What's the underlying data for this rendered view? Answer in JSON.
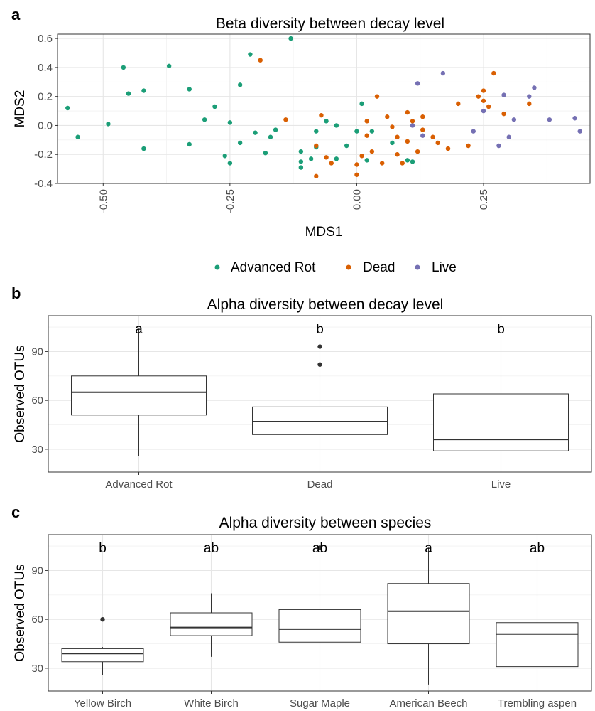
{
  "panel_labels": [
    "a",
    "b",
    "c"
  ],
  "legend": {
    "items": [
      {
        "label": "Advanced Rot",
        "color": "#1b9e77"
      },
      {
        "label": "Dead",
        "color": "#d95f02"
      },
      {
        "label": "Live",
        "color": "#7570b3"
      }
    ]
  },
  "chart_data": [
    {
      "type": "scatter",
      "title": "Beta diversity between decay level",
      "xlabel": "MDS1",
      "ylabel": "MDS2",
      "xlim": [
        -0.59,
        0.46
      ],
      "ylim": [
        -0.4,
        0.63
      ],
      "xticks": [
        -0.5,
        -0.25,
        0.0,
        0.25
      ],
      "xtick_labels": [
        "-0.50",
        "-0.25",
        "0.00",
        "0.25"
      ],
      "yticks": [
        -0.4,
        -0.2,
        0.0,
        0.2,
        0.4,
        0.6
      ],
      "ytick_labels": [
        "-0.4",
        "-0.2",
        "0.0",
        "0.2",
        "0.4",
        "0.6"
      ],
      "grid": true,
      "legend_position": "bottom",
      "series": [
        {
          "name": "Advanced Rot",
          "color": "#1b9e77",
          "points": [
            [
              -0.57,
              0.12
            ],
            [
              -0.55,
              -0.08
            ],
            [
              -0.49,
              0.01
            ],
            [
              -0.46,
              0.4
            ],
            [
              -0.45,
              0.22
            ],
            [
              -0.42,
              0.24
            ],
            [
              -0.42,
              -0.16
            ],
            [
              -0.37,
              0.41
            ],
            [
              -0.33,
              0.25
            ],
            [
              -0.33,
              -0.13
            ],
            [
              -0.3,
              0.04
            ],
            [
              -0.28,
              0.13
            ],
            [
              -0.26,
              -0.21
            ],
            [
              -0.25,
              0.02
            ],
            [
              -0.25,
              -0.26
            ],
            [
              -0.23,
              0.28
            ],
            [
              -0.23,
              -0.12
            ],
            [
              -0.21,
              0.49
            ],
            [
              -0.2,
              -0.05
            ],
            [
              -0.18,
              -0.19
            ],
            [
              -0.17,
              -0.08
            ],
            [
              -0.16,
              -0.03
            ],
            [
              -0.13,
              0.6
            ],
            [
              -0.11,
              -0.25
            ],
            [
              -0.11,
              -0.29
            ],
            [
              -0.11,
              -0.18
            ],
            [
              -0.09,
              -0.23
            ],
            [
              -0.08,
              -0.15
            ],
            [
              -0.08,
              -0.04
            ],
            [
              -0.06,
              0.03
            ],
            [
              -0.04,
              0.0
            ],
            [
              -0.04,
              -0.23
            ],
            [
              -0.02,
              -0.14
            ],
            [
              0.0,
              -0.04
            ],
            [
              0.01,
              0.15
            ],
            [
              0.02,
              -0.24
            ],
            [
              0.03,
              -0.04
            ],
            [
              0.07,
              -0.12
            ],
            [
              0.1,
              -0.24
            ],
            [
              0.11,
              -0.25
            ]
          ]
        },
        {
          "name": "Dead",
          "color": "#d95f02",
          "points": [
            [
              -0.19,
              0.45
            ],
            [
              -0.14,
              0.04
            ],
            [
              -0.08,
              -0.14
            ],
            [
              -0.08,
              -0.35
            ],
            [
              -0.07,
              0.07
            ],
            [
              -0.06,
              -0.22
            ],
            [
              -0.05,
              -0.26
            ],
            [
              0.0,
              -0.34
            ],
            [
              0.0,
              -0.27
            ],
            [
              0.01,
              -0.21
            ],
            [
              0.02,
              -0.07
            ],
            [
              0.02,
              0.03
            ],
            [
              0.03,
              -0.18
            ],
            [
              0.04,
              0.2
            ],
            [
              0.05,
              -0.26
            ],
            [
              0.06,
              0.06
            ],
            [
              0.07,
              -0.01
            ],
            [
              0.08,
              -0.08
            ],
            [
              0.08,
              -0.2
            ],
            [
              0.09,
              -0.26
            ],
            [
              0.1,
              -0.11
            ],
            [
              0.1,
              0.09
            ],
            [
              0.11,
              0.03
            ],
            [
              0.12,
              -0.18
            ],
            [
              0.13,
              0.06
            ],
            [
              0.13,
              -0.03
            ],
            [
              0.15,
              -0.08
            ],
            [
              0.16,
              -0.12
            ],
            [
              0.18,
              -0.16
            ],
            [
              0.2,
              0.15
            ],
            [
              0.22,
              -0.14
            ],
            [
              0.24,
              0.2
            ],
            [
              0.25,
              0.17
            ],
            [
              0.25,
              0.24
            ],
            [
              0.26,
              0.13
            ],
            [
              0.27,
              0.36
            ],
            [
              0.29,
              0.08
            ],
            [
              0.34,
              0.15
            ]
          ]
        },
        {
          "name": "Live",
          "color": "#7570b3",
          "points": [
            [
              0.11,
              0.0
            ],
            [
              0.12,
              0.29
            ],
            [
              0.13,
              -0.07
            ],
            [
              0.17,
              0.36
            ],
            [
              0.23,
              -0.04
            ],
            [
              0.25,
              0.1
            ],
            [
              0.28,
              -0.14
            ],
            [
              0.29,
              0.21
            ],
            [
              0.3,
              -0.08
            ],
            [
              0.31,
              0.04
            ],
            [
              0.34,
              0.2
            ],
            [
              0.35,
              0.26
            ],
            [
              0.38,
              0.04
            ],
            [
              0.43,
              0.05
            ],
            [
              0.44,
              -0.04
            ]
          ]
        }
      ]
    },
    {
      "type": "box",
      "title": "Alpha diversity between decay level",
      "xlabel": "",
      "ylabel": "Observed OTUs",
      "ylim": [
        16,
        112
      ],
      "yticks": [
        30,
        60,
        90
      ],
      "ytick_labels": [
        "30",
        "60",
        "90"
      ],
      "grid": true,
      "categories": [
        "Advanced Rot",
        "Dead",
        "Live"
      ],
      "significance_letters": [
        "a",
        "b",
        "b"
      ],
      "boxes": [
        {
          "min": 26,
          "q1": 51,
          "median": 65,
          "q3": 75,
          "max": 104,
          "outliers": []
        },
        {
          "min": 25,
          "q1": 39,
          "median": 47,
          "q3": 56,
          "max": 80,
          "outliers": [
            82,
            93
          ]
        },
        {
          "min": 20,
          "q1": 29,
          "median": 36,
          "q3": 64,
          "max": 82,
          "outliers": []
        }
      ]
    },
    {
      "type": "box",
      "title": "Alpha diversity between species",
      "xlabel": "",
      "ylabel": "Observed OTUs",
      "ylim": [
        16,
        112
      ],
      "yticks": [
        30,
        60,
        90
      ],
      "ytick_labels": [
        "30",
        "60",
        "90"
      ],
      "grid": true,
      "categories": [
        "Yellow Birch",
        "White Birch",
        "Sugar Maple",
        "American Beech",
        "Trembling aspen"
      ],
      "significance_letters": [
        "b",
        "ab",
        "ab",
        "a",
        "ab"
      ],
      "boxes": [
        {
          "min": 26,
          "q1": 34,
          "median": 39,
          "q3": 42,
          "max": 43,
          "outliers": [
            60
          ]
        },
        {
          "min": 37,
          "q1": 50,
          "median": 55,
          "q3": 64,
          "max": 76,
          "outliers": []
        },
        {
          "min": 26,
          "q1": 46,
          "median": 54,
          "q3": 66,
          "max": 82,
          "outliers": [
            104
          ]
        },
        {
          "min": 20,
          "q1": 45,
          "median": 65,
          "q3": 82,
          "max": 104,
          "outliers": []
        },
        {
          "min": 30,
          "q1": 31,
          "median": 51,
          "q3": 58,
          "max": 87,
          "outliers": []
        }
      ]
    }
  ]
}
